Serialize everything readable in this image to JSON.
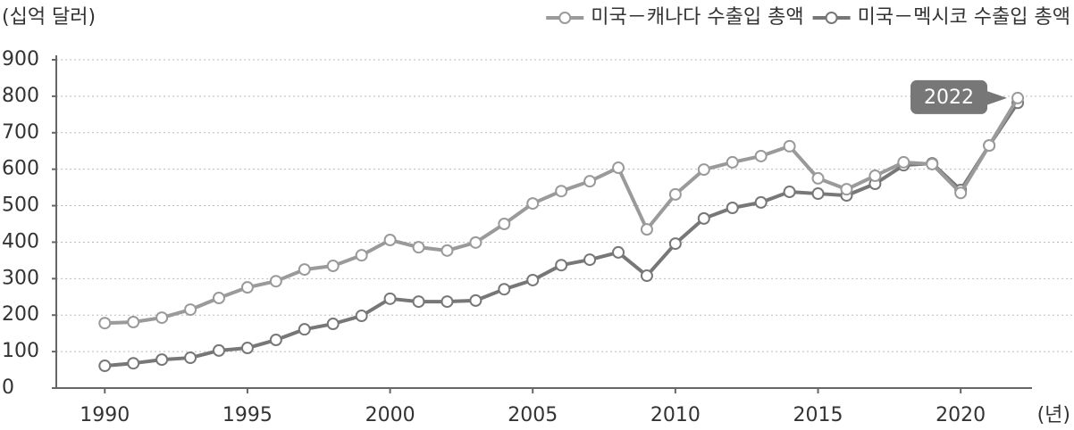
{
  "chart_data": {
    "type": "line",
    "y_unit": "(십억 달러)",
    "x_unit": "(년)",
    "annotation": "2022",
    "x": [
      1990,
      1991,
      1992,
      1993,
      1994,
      1995,
      1996,
      1997,
      1998,
      1999,
      2000,
      2001,
      2002,
      2003,
      2004,
      2005,
      2006,
      2007,
      2008,
      2009,
      2010,
      2011,
      2012,
      2013,
      2014,
      2015,
      2016,
      2017,
      2018,
      2019,
      2020,
      2021,
      2022
    ],
    "series": [
      {
        "name": "미국－캐나다 수출입 총액",
        "color": "#9a9a9a",
        "values": [
          178,
          181,
          193,
          215,
          247,
          276,
          293,
          325,
          335,
          364,
          406,
          386,
          377,
          399,
          450,
          506,
          540,
          567,
          604,
          435,
          531,
          599,
          619,
          636,
          663,
          575,
          545,
          582,
          619,
          614,
          535,
          665,
          795
        ]
      },
      {
        "name": "미국－멕시코 수출입 총액",
        "color": "#777777",
        "values": [
          61,
          68,
          78,
          83,
          103,
          110,
          132,
          161,
          176,
          198,
          245,
          237,
          237,
          240,
          271,
          296,
          337,
          352,
          372,
          308,
          396,
          465,
          494,
          509,
          538,
          533,
          528,
          560,
          611,
          616,
          543,
          665,
          782
        ]
      }
    ],
    "xlim": [
      1988.3,
      2022.5
    ],
    "xticks": [
      1990,
      1995,
      2000,
      2005,
      2010,
      2015,
      2020
    ],
    "ylim": [
      0,
      900
    ],
    "yticks": [
      0,
      100,
      200,
      300,
      400,
      500,
      600,
      700,
      800,
      900
    ],
    "grid": true
  }
}
